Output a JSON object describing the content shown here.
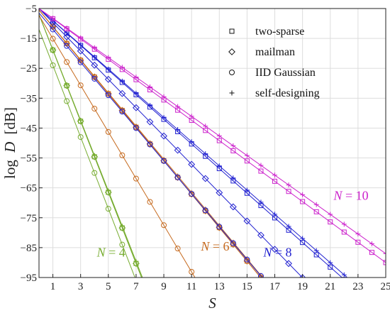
{
  "chart_data": {
    "type": "line",
    "xlabel": "S",
    "ylabel_prefix": "log",
    "ylabel_var": "D",
    "ylabel_unit": "[dB]",
    "xlim": [
      0,
      25
    ],
    "ylim": [
      -95,
      -5
    ],
    "xticks": [
      1,
      3,
      5,
      7,
      9,
      11,
      13,
      15,
      17,
      19,
      21,
      23,
      25
    ],
    "yticks": [
      -5,
      -15,
      -25,
      -35,
      -45,
      -55,
      -65,
      -75,
      -85,
      -95
    ],
    "grid": true,
    "legend_position": "top-right",
    "legend": [
      {
        "marker": "square",
        "label": "two-sparse"
      },
      {
        "marker": "diamond",
        "label": "mailman"
      },
      {
        "marker": "circle",
        "label": "IID Gaussian"
      },
      {
        "marker": "plus",
        "label": "self-designing"
      }
    ],
    "groups": [
      {
        "label_text": "N = 4",
        "label_var": "N",
        "label_value": "4",
        "color": "#77ac30",
        "label_at": [
          5.2,
          -88
        ],
        "series": [
          {
            "marker": "square",
            "x0": 0,
            "y0": -7.0,
            "slope": -11.9
          },
          {
            "marker": "diamond",
            "x0": 0,
            "y0": -7.0,
            "slope": -11.9
          },
          {
            "marker": "circle",
            "x0": 0,
            "y0": -12.0,
            "slope": -12.0
          },
          {
            "marker": "plus",
            "x0": 0,
            "y0": -7.0,
            "slope": -11.8
          }
        ]
      },
      {
        "label_text": "N = 6",
        "label_var": "N",
        "label_value": "6",
        "color": "#c66a1e",
        "label_at": [
          12.7,
          -86
        ],
        "series": [
          {
            "marker": "square",
            "x0": 0,
            "y0": -5.5,
            "slope": -5.6
          },
          {
            "marker": "diamond",
            "x0": 0,
            "y0": -5.5,
            "slope": -5.6
          },
          {
            "marker": "circle",
            "x0": 0,
            "y0": -7.3,
            "slope": -7.8
          },
          {
            "marker": "plus",
            "x0": 0,
            "y0": -5.5,
            "slope": -5.55
          }
        ]
      },
      {
        "label_text": "N = 8",
        "label_var": "N",
        "label_value": "8",
        "color": "#1f1fd0",
        "label_at": [
          17.2,
          -88
        ],
        "series": [
          {
            "marker": "square",
            "x0": 0,
            "y0": -5.0,
            "slope": -4.12
          },
          {
            "marker": "diamond",
            "x0": 0,
            "y0": -5.0,
            "slope": -4.74
          },
          {
            "marker": "circle",
            "x0": 0,
            "y0": -6.5,
            "slope": -5.5
          },
          {
            "marker": "plus",
            "x0": 0,
            "y0": -5.0,
            "slope": -4.05
          }
        ]
      },
      {
        "label_text": "N = 10",
        "label_var": "N",
        "label_value": "10",
        "color": "#cc22cc",
        "label_at": [
          22.5,
          -69
        ],
        "series": [
          {
            "marker": "square",
            "x0": 0,
            "y0": -5.0,
            "slope": -3.4
          },
          {
            "marker": "plus",
            "x0": 0,
            "y0": -5.0,
            "slope": -3.28
          }
        ]
      }
    ]
  }
}
